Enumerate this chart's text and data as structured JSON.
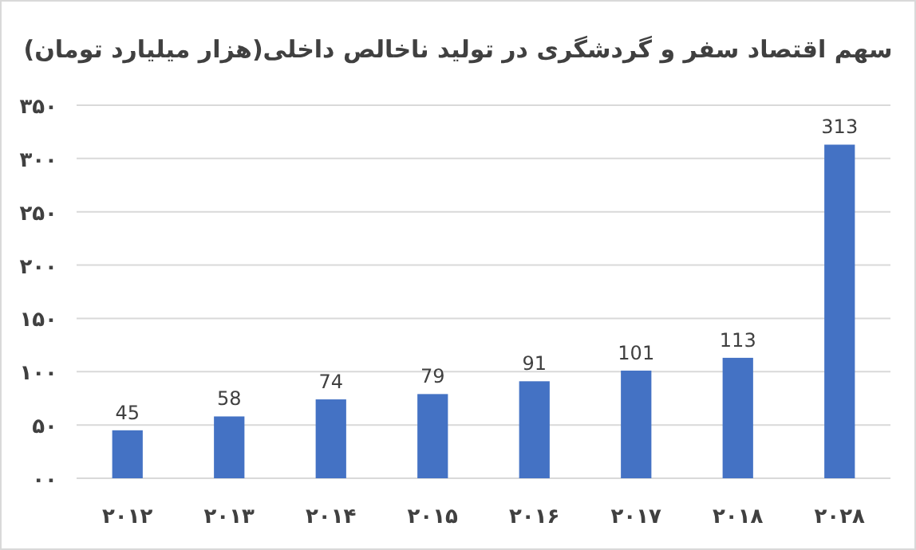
{
  "chart_data": {
    "type": "bar",
    "title": "سهم اقتصاد سفر و گردشگری در تولید ناخالص داخلی(هزار میلیارد تومان)",
    "categories": [
      "۲۰۱۲",
      "۲۰۱۳",
      "۲۰۱۴",
      "۲۰۱۵",
      "۲۰۱۶",
      "۲۰۱۷",
      "۲۰۱۸",
      "۲۰۲۸"
    ],
    "values": [
      45,
      58,
      74,
      79,
      91,
      101,
      113,
      313
    ],
    "color": "#4472c4",
    "ylim": [
      0,
      350
    ],
    "yticks": [
      {
        "value": 0,
        "label": "۰۰"
      },
      {
        "value": 50,
        "label": "۵۰"
      },
      {
        "value": 100,
        "label": "۱۰۰"
      },
      {
        "value": 150,
        "label": "۱۵۰"
      },
      {
        "value": 200,
        "label": "۲۰۰"
      },
      {
        "value": 250,
        "label": "۲۵۰"
      },
      {
        "value": 300,
        "label": "۳۰۰"
      },
      {
        "value": 350,
        "label": "۳۵۰"
      }
    ],
    "grid": "y",
    "data_labels": true
  }
}
